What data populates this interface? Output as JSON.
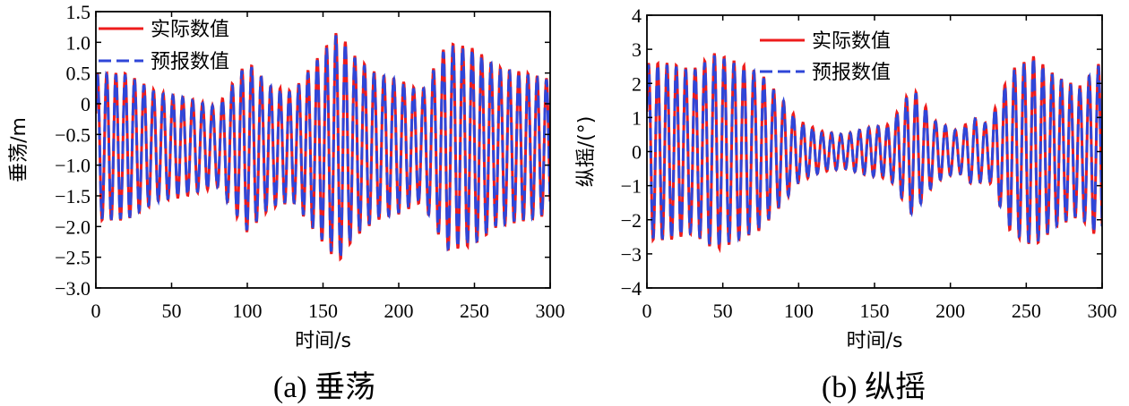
{
  "chart_data": [
    {
      "type": "line",
      "caption": "(a) 垂荡",
      "xlabel": "时间/s",
      "ylabel": "垂荡/m",
      "xlim": [
        0,
        300
      ],
      "ylim": [
        -3.0,
        1.5
      ],
      "xticks": [
        0,
        50,
        100,
        150,
        200,
        250,
        300
      ],
      "xtick_labels": [
        "0",
        "50",
        "100",
        "150",
        "200",
        "250",
        "300"
      ],
      "yticks": [
        -3.0,
        -2.5,
        -2.0,
        -1.5,
        -1.0,
        -0.5,
        0,
        0.5,
        1.0,
        1.5
      ],
      "ytick_labels": [
        "−3.0",
        "−2.5",
        "−2.0",
        "−1.5",
        "−1.0",
        "−0.5",
        "0",
        "0.5",
        "1.0",
        "1.5"
      ],
      "grid": false,
      "legend_position": "top-left",
      "wave": {
        "mean": -0.7,
        "period_s": 6.3,
        "envelope": [
          [
            0,
            1.2
          ],
          [
            20,
            1.2
          ],
          [
            40,
            0.9
          ],
          [
            60,
            0.8
          ],
          [
            80,
            0.65
          ],
          [
            100,
            1.4
          ],
          [
            115,
            1.0
          ],
          [
            130,
            0.9
          ],
          [
            145,
            1.4
          ],
          [
            160,
            1.9
          ],
          [
            170,
            1.5
          ],
          [
            185,
            1.2
          ],
          [
            200,
            1.1
          ],
          [
            215,
            0.9
          ],
          [
            232,
            1.7
          ],
          [
            250,
            1.6
          ],
          [
            265,
            1.3
          ],
          [
            285,
            1.2
          ],
          [
            300,
            1.1
          ]
        ]
      },
      "series": [
        {
          "name": "实际数值",
          "color": "#ee1c1c",
          "dash": "solid"
        },
        {
          "name": "预报数值",
          "color": "#2f46d8",
          "dash": "dashed"
        }
      ]
    },
    {
      "type": "line",
      "caption": "(b) 纵摇",
      "xlabel": "时间/s",
      "ylabel": "纵摇/(°)",
      "xlim": [
        0,
        300
      ],
      "ylim": [
        -4,
        4
      ],
      "xticks": [
        0,
        50,
        100,
        150,
        200,
        250,
        300
      ],
      "xtick_labels": [
        "0",
        "50",
        "100",
        "150",
        "200",
        "250",
        "300"
      ],
      "yticks": [
        -4,
        -3,
        -2,
        -1,
        0,
        1,
        2,
        3,
        4
      ],
      "ytick_labels": [
        "−4",
        "−3",
        "−2",
        "−1",
        "0",
        "1",
        "2",
        "3",
        "4"
      ],
      "grid": false,
      "legend_position": "top-center",
      "wave": {
        "mean": 0,
        "period_s": 6.3,
        "envelope": [
          [
            0,
            2.6
          ],
          [
            15,
            2.6
          ],
          [
            30,
            2.4
          ],
          [
            45,
            2.9
          ],
          [
            60,
            2.6
          ],
          [
            75,
            2.3
          ],
          [
            90,
            1.5
          ],
          [
            100,
            0.9
          ],
          [
            115,
            0.6
          ],
          [
            130,
            0.5
          ],
          [
            145,
            0.7
          ],
          [
            160,
            0.8
          ],
          [
            175,
            1.9
          ],
          [
            190,
            0.9
          ],
          [
            205,
            0.6
          ],
          [
            215,
            1.0
          ],
          [
            225,
            0.8
          ],
          [
            240,
            2.4
          ],
          [
            255,
            2.8
          ],
          [
            270,
            2.2
          ],
          [
            285,
            1.9
          ],
          [
            300,
            2.7
          ]
        ]
      },
      "series": [
        {
          "name": "实际数值",
          "color": "#ee1c1c",
          "dash": "solid"
        },
        {
          "name": "预报数值",
          "color": "#2f46d8",
          "dash": "dashed"
        }
      ]
    }
  ]
}
